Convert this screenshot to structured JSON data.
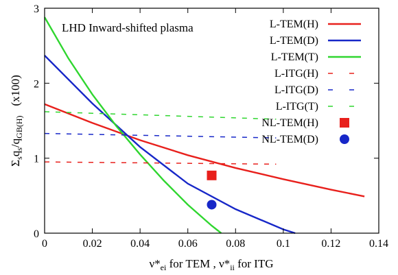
{
  "chart_data": {
    "type": "line",
    "annotation": "LHD Inward-shifted plasma",
    "ylabel": {
      "main": "Σ",
      "sub1": "s",
      "mid1": "q",
      "sub2": "s",
      "mid2": "/q",
      "sub3": "GB(H)",
      "scale": "(x100)"
    },
    "xlabel": {
      "p1": "ν*",
      "sub1": "ei",
      "p2": " for TEM ,  ν*",
      "sub2": "ii",
      "p3": " for ITG"
    },
    "xlim": [
      0,
      0.14
    ],
    "ylim": [
      0,
      3
    ],
    "xticks": [
      "0",
      "0.02",
      "0.04",
      "0.06",
      "0.08",
      "0.1",
      "0.12",
      "0.14"
    ],
    "yticks": [
      "0",
      "1",
      "2",
      "3"
    ],
    "series": [
      {
        "name": "L-TEM(H)",
        "style": "solid",
        "color": "#e8201c",
        "x": [
          0,
          0.02,
          0.04,
          0.06,
          0.08,
          0.1,
          0.12,
          0.134
        ],
        "y": [
          1.72,
          1.47,
          1.24,
          1.04,
          0.87,
          0.72,
          0.58,
          0.49
        ]
      },
      {
        "name": "L-TEM(D)",
        "style": "solid",
        "color": "#1727c8",
        "x": [
          0,
          0.02,
          0.04,
          0.06,
          0.08,
          0.1,
          0.105
        ],
        "y": [
          2.37,
          1.73,
          1.15,
          0.66,
          0.32,
          0.05,
          0.0
        ]
      },
      {
        "name": "L-TEM(T)",
        "style": "solid",
        "color": "#2fd62f",
        "x": [
          0,
          0.01,
          0.02,
          0.03,
          0.04,
          0.05,
          0.06,
          0.07,
          0.074
        ],
        "y": [
          2.88,
          2.33,
          1.85,
          1.43,
          1.05,
          0.7,
          0.38,
          0.1,
          0.0
        ]
      },
      {
        "name": "L-ITG(H)",
        "style": "dashed",
        "color": "#e8201c",
        "x": [
          0,
          0.097
        ],
        "y": [
          0.95,
          0.92
        ]
      },
      {
        "name": "L-ITG(D)",
        "style": "dashed",
        "color": "#1727c8",
        "x": [
          0,
          0.097
        ],
        "y": [
          1.33,
          1.27
        ]
      },
      {
        "name": "L-ITG(T)",
        "style": "dashed",
        "color": "#2fd62f",
        "x": [
          0,
          0.097
        ],
        "y": [
          1.62,
          1.52
        ]
      },
      {
        "name": "NL-TEM(H)",
        "style": "marker-square",
        "color": "#e8201c",
        "x": [
          0.07
        ],
        "y": [
          0.77
        ]
      },
      {
        "name": "NL-TEM(D)",
        "style": "marker-circle",
        "color": "#1727c8",
        "x": [
          0.07
        ],
        "y": [
          0.38
        ]
      }
    ]
  }
}
